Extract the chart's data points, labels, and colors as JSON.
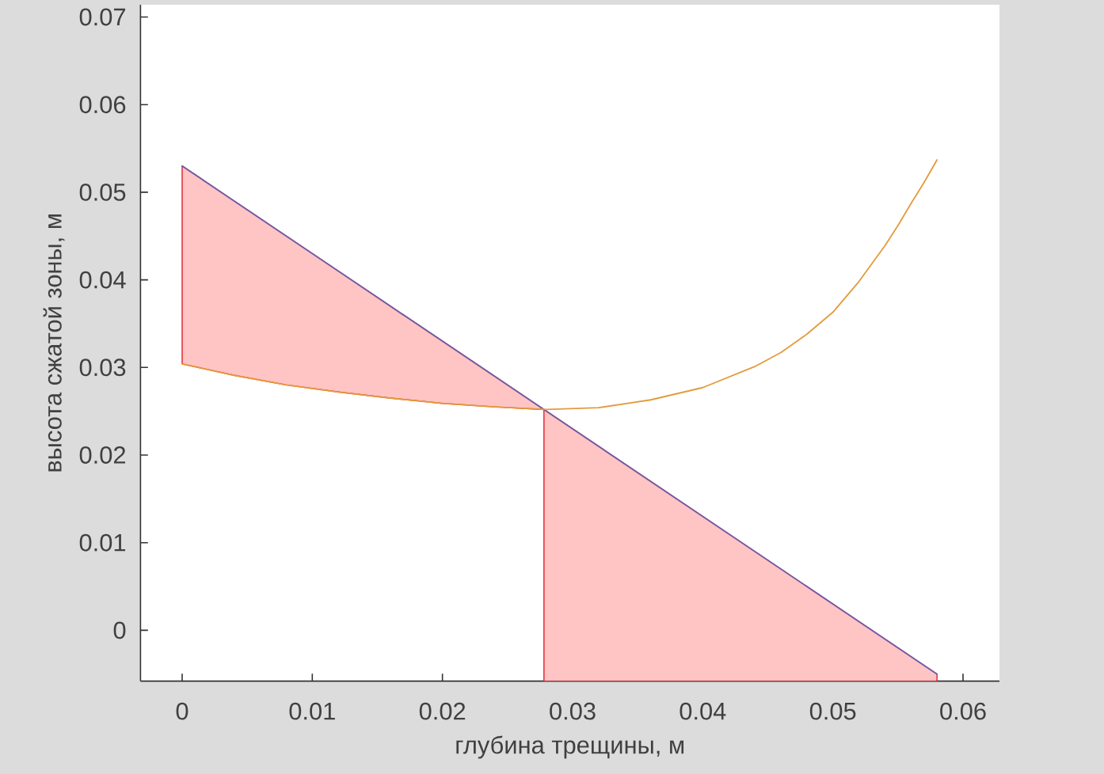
{
  "chart_data": {
    "type": "line",
    "xlabel": "глубина трещины, м",
    "ylabel": "высота сжатой зоны, м",
    "xlim": [
      -0.0032,
      0.0628
    ],
    "ylim": [
      -0.0058,
      0.0714
    ],
    "xticks": [
      0,
      0.01,
      0.02,
      0.03,
      0.04,
      0.05,
      0.06
    ],
    "yticks": [
      0,
      0.01,
      0.02,
      0.03,
      0.04,
      0.05,
      0.06,
      0.07
    ],
    "series": [
      {
        "color": "#6e5ea8",
        "x": [
          0,
          0.004,
          0.008,
          0.012,
          0.016,
          0.02,
          0.024,
          0.0278,
          0.0278,
          0.058
        ],
        "values": [
          0.053,
          0.049,
          0.045,
          0.041,
          0.037,
          0.033,
          0.029,
          0.0252,
          0.0252,
          -0.005
        ],
        "lower": [
          0.0304,
          0.0291,
          0.028,
          0.0272,
          0.0265,
          0.0259,
          0.0255,
          0.0252,
          -0.0058,
          -0.0058
        ],
        "upper": [
          0.053,
          0.049,
          0.045,
          0.041,
          0.037,
          0.033,
          0.029,
          0.0252,
          0.0252,
          -0.005
        ]
      },
      {
        "color": "#e39b3c",
        "x": [
          0,
          0.004,
          0.008,
          0.012,
          0.016,
          0.02,
          0.024,
          0.028,
          0.032,
          0.036,
          0.04,
          0.044,
          0.046,
          0.048,
          0.05,
          0.052,
          0.054,
          0.055,
          0.056,
          0.057,
          0.058
        ],
        "values": [
          0.0304,
          0.0291,
          0.028,
          0.0272,
          0.0265,
          0.0259,
          0.0255,
          0.0252,
          0.0254,
          0.0263,
          0.0277,
          0.0301,
          0.0317,
          0.0338,
          0.0363,
          0.0398,
          0.0439,
          0.0462,
          0.0487,
          0.0511,
          0.0537
        ]
      }
    ]
  }
}
